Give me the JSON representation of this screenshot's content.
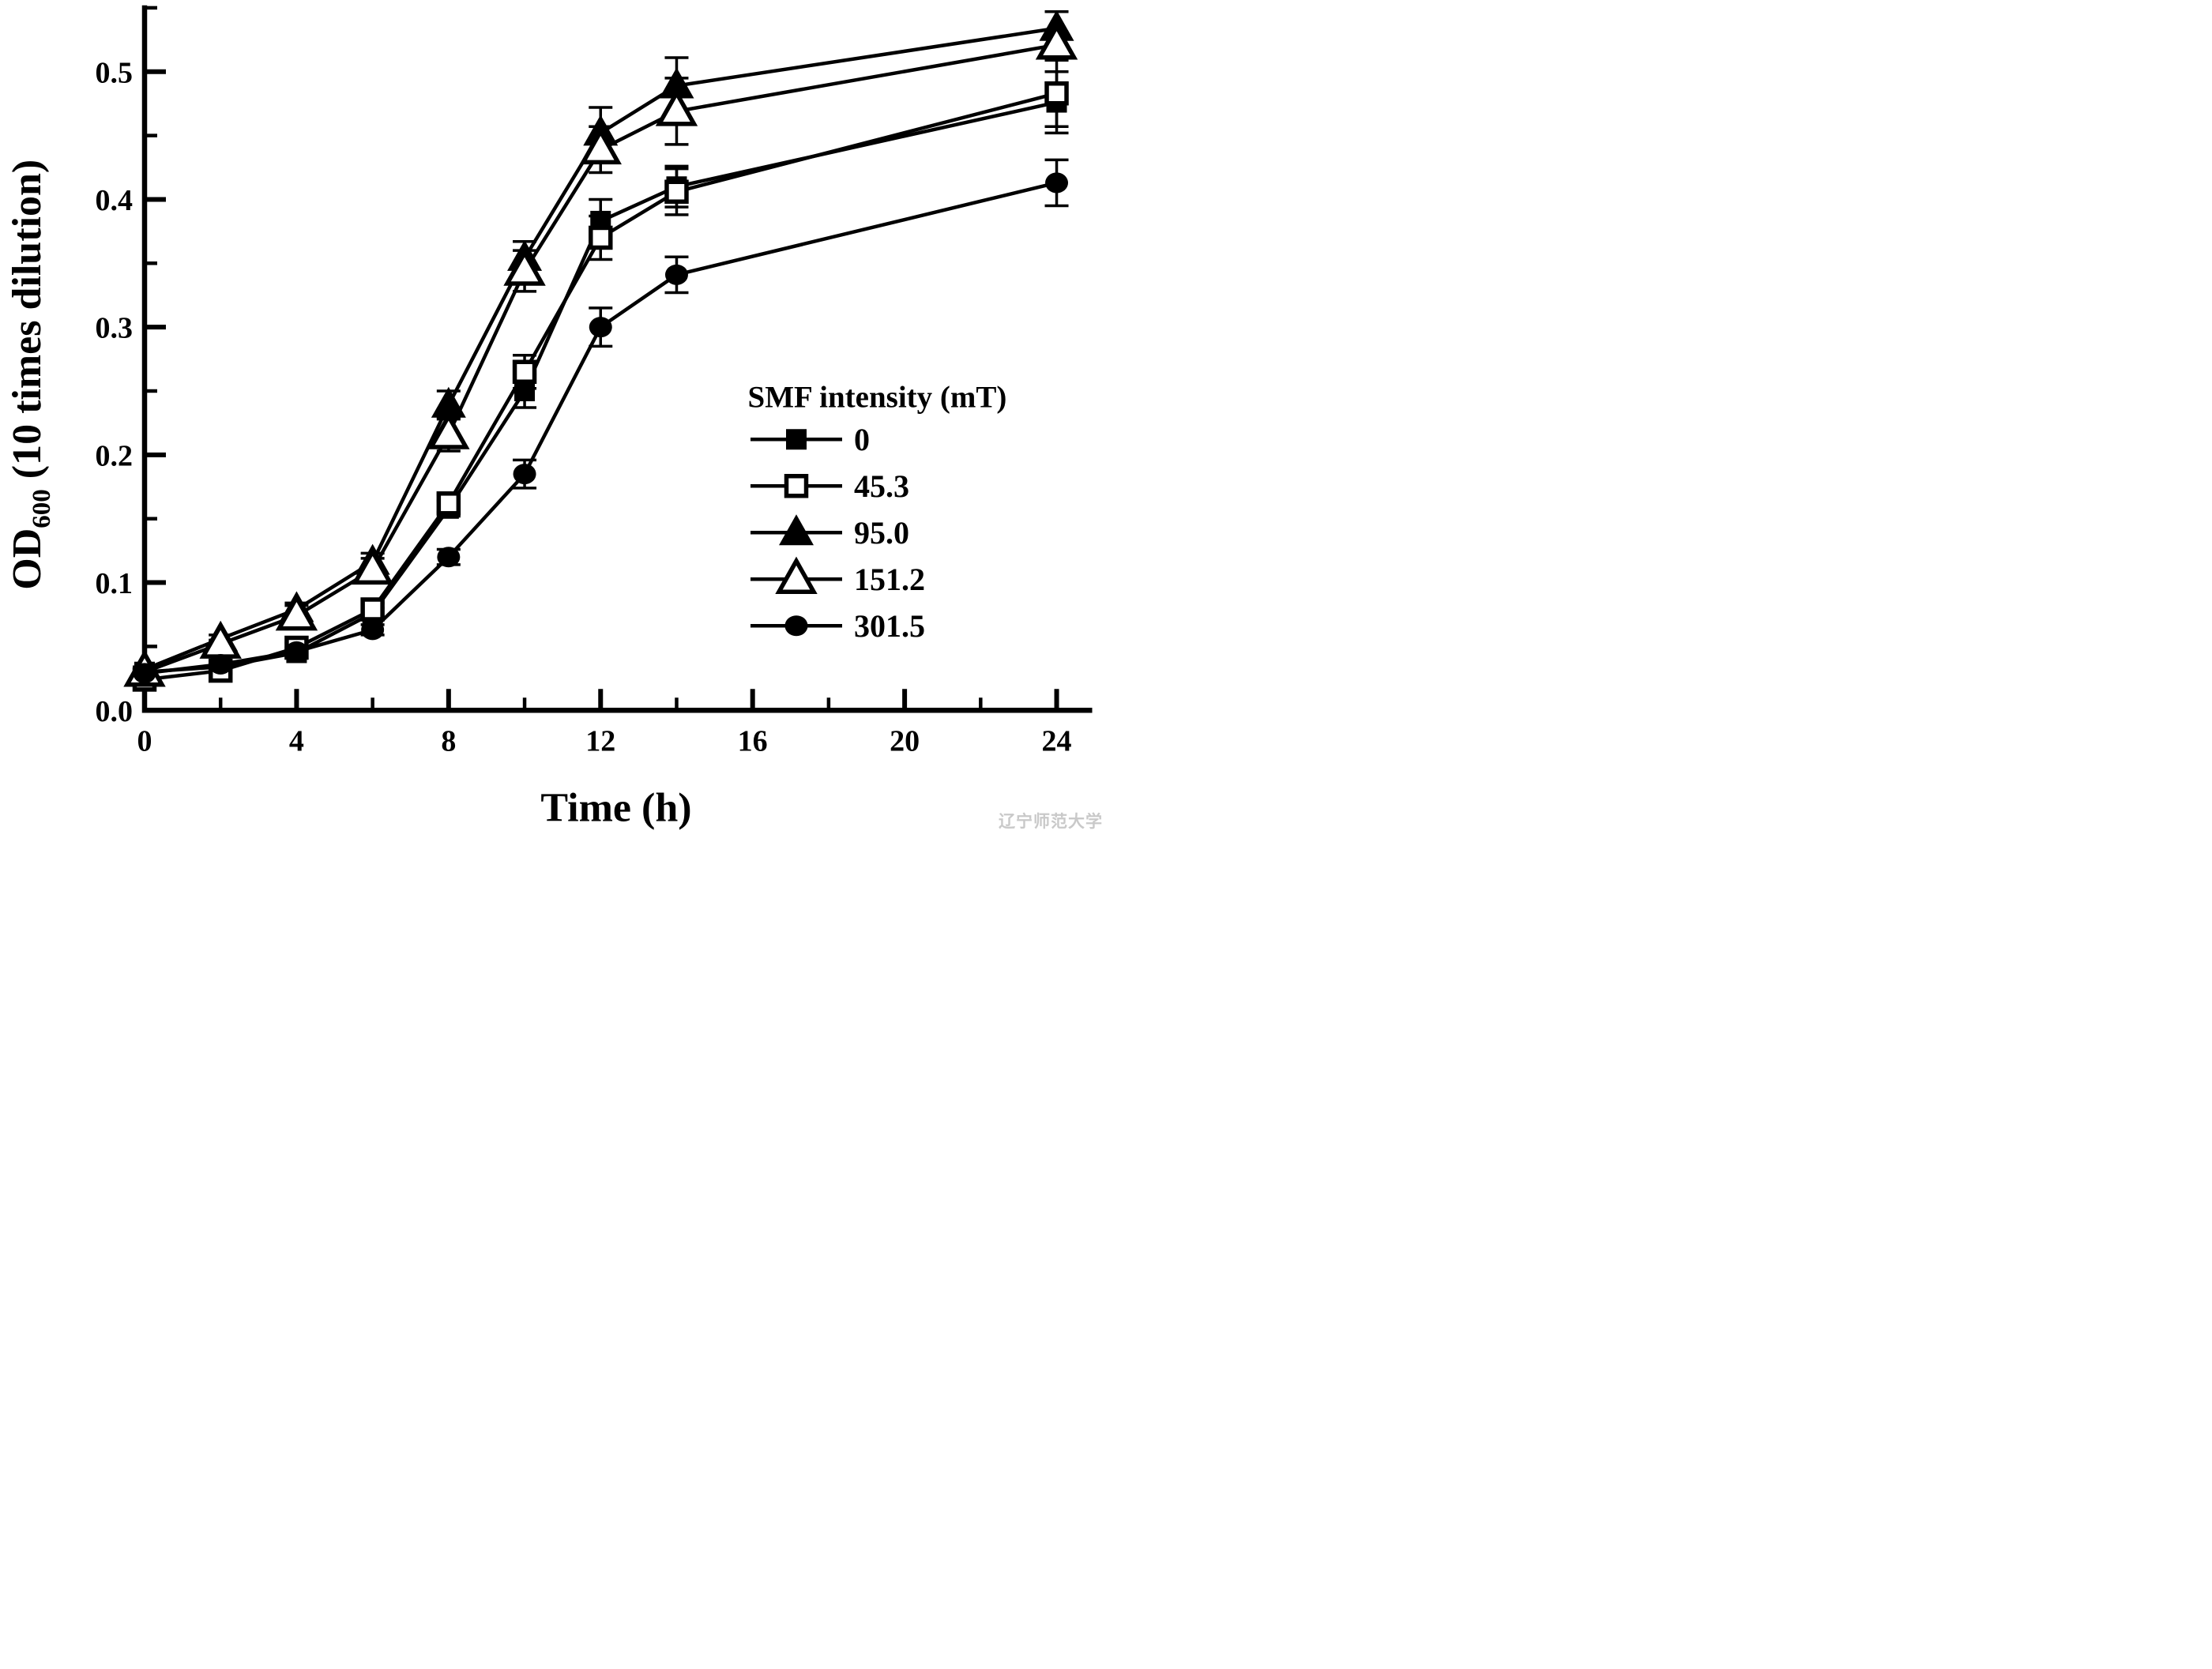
{
  "figure": {
    "watermark": {
      "text": "辽宁师范大学",
      "color": "#c9c9c9"
    }
  },
  "chart_data": {
    "type": "line",
    "title": "",
    "xlabel": "Time (h)",
    "ylabel": {
      "base": "OD",
      "subscript": "600",
      "rest": " (10 times dilution)"
    },
    "x": [
      0,
      2,
      4,
      6,
      8,
      10,
      12,
      14,
      24
    ],
    "xlim": [
      0,
      24.95
    ],
    "ylim": [
      0,
      0.552
    ],
    "x_major_ticks": [
      0,
      4,
      8,
      12,
      16,
      20,
      24
    ],
    "x_minor_ticks": [
      2,
      6,
      10,
      14,
      18,
      22
    ],
    "y_major_ticks": [
      0.0,
      0.1,
      0.2,
      0.3,
      0.4,
      0.5
    ],
    "y_minor_ticks": [
      0.05,
      0.15,
      0.25,
      0.35,
      0.45,
      0.55
    ],
    "grid": false,
    "legend": {
      "title": "SMF intensity (mT)",
      "position": "inside-right"
    },
    "series": [
      {
        "name": "0",
        "marker": "square-filled",
        "values": [
          0.03,
          0.034,
          0.045,
          0.076,
          0.158,
          0.25,
          0.383,
          0.41,
          0.476
        ],
        "errors": [
          0.002,
          0.002,
          0.003,
          0.004,
          0.006,
          0.013,
          0.017,
          0.016,
          0.024
        ]
      },
      {
        "name": "45.3",
        "marker": "square-open",
        "values": [
          0.024,
          0.031,
          0.049,
          0.079,
          0.162,
          0.265,
          0.37,
          0.406,
          0.483
        ],
        "errors": [
          0.002,
          0.002,
          0.004,
          0.005,
          0.007,
          0.013,
          0.017,
          0.018,
          0.026
        ]
      },
      {
        "name": "95.0",
        "marker": "triangle-filled",
        "values": [
          0.032,
          0.056,
          0.079,
          0.116,
          0.239,
          0.354,
          0.452,
          0.489,
          0.534
        ],
        "errors": [
          0.002,
          0.003,
          0.005,
          0.007,
          0.011,
          0.013,
          0.02,
          0.022,
          0.013
        ]
      },
      {
        "name": "151.2",
        "marker": "triangle-open",
        "values": [
          0.03,
          0.052,
          0.074,
          0.11,
          0.216,
          0.344,
          0.439,
          0.469,
          0.521
        ],
        "errors": [
          0.002,
          0.003,
          0.008,
          0.009,
          0.013,
          0.016,
          0.018,
          0.026,
          0.01
        ]
      },
      {
        "name": "301.5",
        "marker": "circle-filled",
        "values": [
          0.029,
          0.036,
          0.046,
          0.063,
          0.12,
          0.185,
          0.3,
          0.341,
          0.413
        ],
        "errors": [
          0.002,
          0.002,
          0.003,
          0.004,
          0.006,
          0.011,
          0.015,
          0.014,
          0.018
        ]
      }
    ],
    "colors": {
      "foreground": "#000000",
      "background": "#ffffff"
    }
  }
}
